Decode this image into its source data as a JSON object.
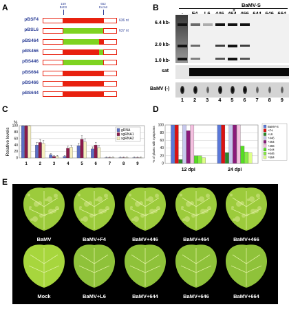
{
  "panels": {
    "a": "A",
    "b": "B",
    "c": "C",
    "d": "D",
    "e": "E"
  },
  "panelA": {
    "site1": {
      "pos": "159",
      "name": "BstXI"
    },
    "site2": {
      "pos": "652",
      "name": "EcoNI"
    },
    "constructs": [
      {
        "name": "pBSF4",
        "left": "red",
        "right": "red",
        "length": "636 nt"
      },
      {
        "name": "pBSL6",
        "left": "green",
        "right": "green",
        "length": "637 nt"
      },
      {
        "name": "pBS464",
        "left": "green",
        "right": "red",
        "length": ""
      },
      {
        "name": "pBS466",
        "left": "red",
        "right": "green",
        "length": ""
      },
      {
        "name": "pBS446",
        "left": "green",
        "right": "green",
        "length": ""
      },
      {
        "name": "pBS664",
        "left": "red",
        "right": "red",
        "length": ""
      },
      {
        "name": "pBS466",
        "left": "red",
        "right": "red",
        "length": ""
      },
      {
        "name": "pBS644",
        "left": "red",
        "right": "red",
        "length": ""
      }
    ]
  },
  "panelB": {
    "header_top": "BaMV-S",
    "header_plus": "+",
    "lanes": [
      "-",
      "F4",
      "L6",
      "446",
      "464",
      "466",
      "644",
      "646",
      "664"
    ],
    "markers": [
      "6.4 kb-",
      "2.0 kb-",
      "1.0 kb-"
    ],
    "sat_label": "sat",
    "bamv_label": "BaMV (-)",
    "lane_numbers": [
      "1",
      "2",
      "3",
      "4",
      "5",
      "6",
      "7",
      "8",
      "9"
    ]
  },
  "chart_data": [
    {
      "type": "bar",
      "panel": "C",
      "ylabel": "Relative levels",
      "unit": "%",
      "categories": [
        "1",
        "2",
        "3",
        "4",
        "5",
        "6",
        "7",
        "8",
        "9"
      ],
      "ylim": [
        0,
        100
      ],
      "yticks": [
        "100",
        "80",
        "60",
        "40",
        "20",
        "0"
      ],
      "series": [
        {
          "name": "gRNA",
          "color": "#5b6fc4",
          "values": [
            100,
            40,
            10,
            5,
            38,
            28,
            1,
            1,
            1
          ]
        },
        {
          "name": "sgRNA1",
          "color": "#8b1a4a",
          "values": [
            100,
            48,
            5,
            30,
            58,
            40,
            1,
            1,
            1
          ]
        },
        {
          "name": "sgRNA2",
          "color": "#f6efbf",
          "values": [
            100,
            45,
            5,
            33,
            50,
            32,
            1,
            1,
            1
          ]
        }
      ]
    },
    {
      "type": "bar",
      "panel": "D",
      "ylabel": "% of plants with symptoms",
      "categories": [
        "12 dpi",
        "24 dpi"
      ],
      "ylim": [
        0,
        100
      ],
      "yticks": [
        "100",
        "80",
        "60",
        "40",
        "20",
        "0"
      ],
      "series": [
        {
          "name": "BaMV-S",
          "color": "#5a78d8",
          "values": [
            100,
            100
          ]
        },
        {
          "name": "+F4",
          "color": "#dd1111",
          "values": [
            100,
            100
          ]
        },
        {
          "name": "+L6",
          "color": "#2a8a2a",
          "values": [
            10,
            28
          ]
        },
        {
          "name": "+446",
          "color": "#c8c8ee",
          "values": [
            100,
            100
          ]
        },
        {
          "name": "+464",
          "color": "#8b1a7a",
          "values": [
            85,
            100
          ]
        },
        {
          "name": "+466",
          "color": "#f4c0e0",
          "values": [
            100,
            100
          ]
        },
        {
          "name": "+644",
          "color": "#55dd22",
          "values": [
            20,
            45
          ]
        },
        {
          "name": "+646",
          "color": "#88ee44",
          "values": [
            20,
            30
          ]
        },
        {
          "name": "+664",
          "color": "#ddff88",
          "values": [
            15,
            28
          ]
        }
      ]
    }
  ],
  "panelE": {
    "labels": [
      "BaMV",
      "BaMV+F4",
      "BaMV+446",
      "BaMV+464",
      "BaMV+466",
      "Mock",
      "BaMV+L6",
      "BaMV+644",
      "BaMV+646",
      "BaMV+664"
    ]
  }
}
